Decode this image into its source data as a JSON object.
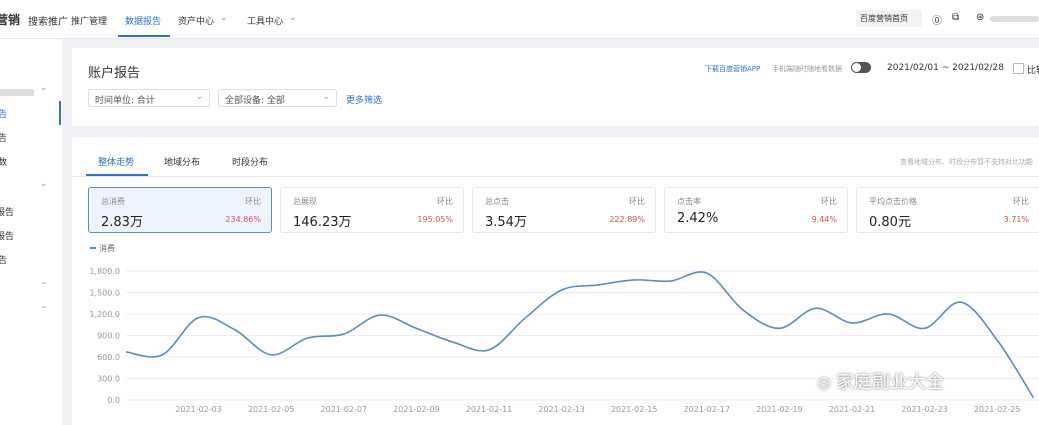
{
  "nav": {
    "brand": "营销",
    "product": "搜索推广",
    "items": [
      "推广管理",
      "数据报告",
      "资产中心",
      "工具中心"
    ],
    "home": "百度营销首页"
  },
  "sidebar": [
    "告",
    "告",
    "数",
    "报告",
    "报告",
    "告"
  ],
  "report": {
    "title": "账户报告",
    "filters": [
      "时间单位: 合计",
      "全部设备: 全部"
    ],
    "more": "更多筛选",
    "app": "下载百度营销APP",
    "mobile": "手机端随时随地看数据",
    "date_range": "2021/02/01 ~ 2021/02/28",
    "compare": "比较"
  },
  "tabs": [
    "整体走势",
    "地域分布",
    "时段分布"
  ],
  "note": "查看地域分布、时段分布暂不支持对比功能",
  "cards": [
    {
      "label": "总消费",
      "value": "2.83万",
      "change_label": "环比",
      "change": "234.86%"
    },
    {
      "label": "总展现",
      "value": "146.23万",
      "change_label": "环比",
      "change": "195.05%"
    },
    {
      "label": "总点击",
      "value": "3.54万",
      "change_label": "环比",
      "change": "222.89%"
    },
    {
      "label": "点击率",
      "value": "2.42%",
      "change_label": "环比",
      "change": "9.44%"
    },
    {
      "label": "平均点击价格",
      "value": "0.80元",
      "change_label": "环比",
      "change": "3.71%"
    }
  ],
  "chart_data": {
    "type": "line",
    "categories": [
      null,
      null,
      "2021-02-03",
      null,
      "2021-02-05",
      null,
      "2021-02-07",
      null,
      "2021-02-09",
      null,
      "2021-02-11",
      null,
      "2021-02-13",
      null,
      "2021-02-15",
      null,
      "2021-02-17",
      null,
      "2021-02-19",
      null,
      "2021-02-21",
      null,
      "2021-02-23",
      null,
      "2021-02-25",
      null
    ],
    "series": [
      {
        "name": "消费",
        "color": "#5b8ac6",
        "values": [
          670,
          630,
          1150,
          980,
          630,
          865,
          920,
          1185,
          1000,
          810,
          700,
          1145,
          1535,
          1605,
          1675,
          1660,
          1770,
          1255,
          1000,
          1280,
          1075,
          1200,
          1000,
          1365,
          835,
          30
        ]
      }
    ],
    "ylim": [
      0,
      1800
    ],
    "yticks": [
      {
        "value": 0,
        "label": "0.0"
      },
      {
        "value": 300,
        "label": "300.0"
      },
      {
        "value": 600,
        "label": "600.0"
      },
      {
        "value": 900,
        "label": "900.0"
      },
      {
        "value": 1200,
        "label": "1,200.0"
      },
      {
        "value": 1500,
        "label": "1,500.0"
      },
      {
        "value": 1800,
        "label": "1,800.0"
      }
    ],
    "grid": true
  },
  "watermark": "家庭副业大全"
}
